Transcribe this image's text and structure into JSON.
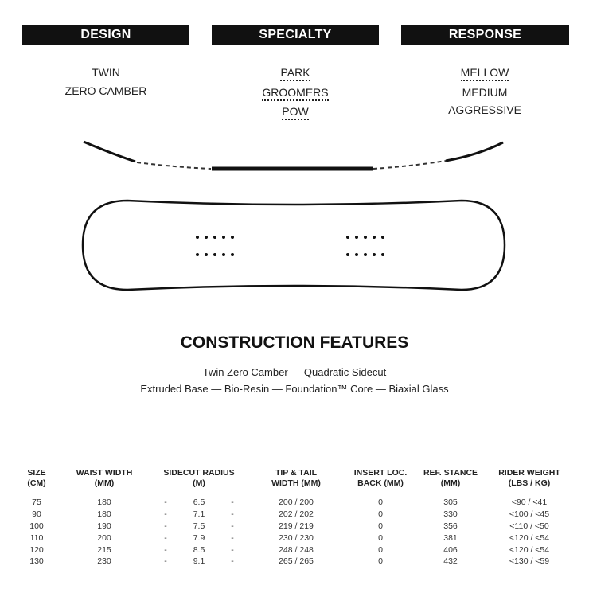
{
  "headers": {
    "design": "DESIGN",
    "specialty": "SPECIALTY",
    "response": "RESPONSE"
  },
  "design": {
    "items": [
      "TWIN",
      "ZERO CAMBER"
    ]
  },
  "specialty": {
    "items": [
      {
        "label": "PARK",
        "selected": true
      },
      {
        "label": "GROOMERS",
        "selected": true
      },
      {
        "label": "POW",
        "selected": true
      }
    ]
  },
  "response": {
    "items": [
      {
        "label": "MELLOW",
        "selected": true
      },
      {
        "label": "MEDIUM",
        "selected": false
      },
      {
        "label": "AGGRESSIVE",
        "selected": false
      }
    ]
  },
  "construction": {
    "title": "CONSTRUCTION FEATURES",
    "line1": "Twin Zero Camber — Quadratic Sidecut",
    "line2": "Extruded Base — Bio-Resin — Foundation™ Core — Biaxial Glass"
  },
  "table": {
    "columns": [
      [
        "SIZE",
        "(CM)"
      ],
      [
        "WAIST WIDTH",
        "(MM)"
      ],
      [
        "SIDECUT RADIUS",
        "(M)"
      ],
      [
        "TIP & TAIL",
        "WIDTH (MM)"
      ],
      [
        "INSERT LOC.",
        "BACK (MM)"
      ],
      [
        "REF. STANCE",
        "(MM)"
      ],
      [
        "RIDER WEIGHT",
        "(LBS / KG)"
      ]
    ],
    "rows": [
      [
        "75",
        "180",
        "6.5",
        "200 / 200",
        "0",
        "305",
        "<90 / <41"
      ],
      [
        "90",
        "180",
        "7.1",
        "202 / 202",
        "0",
        "330",
        "<100 / <45"
      ],
      [
        "100",
        "190",
        "7.5",
        "219 / 219",
        "0",
        "356",
        "<110 / <50"
      ],
      [
        "110",
        "200",
        "7.9",
        "230 / 230",
        "0",
        "381",
        "<120 / <54"
      ],
      [
        "120",
        "215",
        "8.5",
        "248 / 248",
        "0",
        "406",
        "<120 / <54"
      ],
      [
        "130",
        "230",
        "9.1",
        "265 / 265",
        "0",
        "432",
        "<130 / <59"
      ]
    ],
    "dash": "-"
  }
}
